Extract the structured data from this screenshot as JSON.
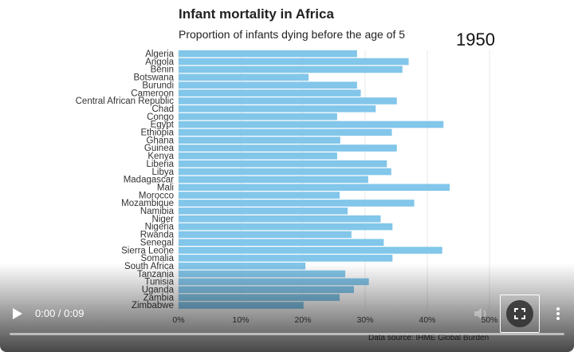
{
  "video": {
    "time_display": "0:00 / 0:09",
    "progress": 0.0,
    "year": "1950",
    "source_partial": "Data source: IHME Global Burden"
  },
  "chart_data": {
    "type": "bar",
    "orientation": "horizontal",
    "title": "Infant mortality in Africa",
    "subtitle": "Proportion of infants dying before the age of 5",
    "xlabel": "",
    "ylabel": "",
    "xlim": [
      0,
      50
    ],
    "x_ticks": [
      "0%",
      "10%",
      "20%",
      "30%",
      "40%",
      "50%"
    ],
    "grid": true,
    "bar_color": "#82c6ea",
    "categories": [
      "Algeria",
      "Angola",
      "Benin",
      "Botswana",
      "Burundi",
      "Cameroon",
      "Central African Republic",
      "Chad",
      "Congo",
      "Egypt",
      "Ethiopia",
      "Ghana",
      "Guinea",
      "Kenya",
      "Liberia",
      "Libya",
      "Madagascar",
      "Mali",
      "Morocco",
      "Mozambique",
      "Namibia",
      "Niger",
      "Nigeria",
      "Rwanda",
      "Senegal",
      "Sierra Leone",
      "Somalia",
      "South Africa",
      "Tanzania",
      "Tunisia",
      "Uganda",
      "Zambia",
      "Zimbabwe"
    ],
    "values": [
      28.7,
      37.0,
      36.0,
      20.9,
      28.7,
      29.3,
      35.1,
      31.7,
      25.5,
      42.6,
      34.3,
      26.0,
      35.1,
      25.5,
      33.5,
      34.2,
      30.5,
      43.6,
      25.9,
      37.9,
      27.2,
      32.5,
      34.4,
      27.8,
      33.0,
      42.4,
      34.4,
      20.4,
      26.8,
      30.6,
      28.2,
      25.9,
      20.1
    ]
  },
  "colors": {
    "bar": "#82c6ea",
    "controls_text": "#ffffff",
    "grid": "#e9e9e9"
  }
}
